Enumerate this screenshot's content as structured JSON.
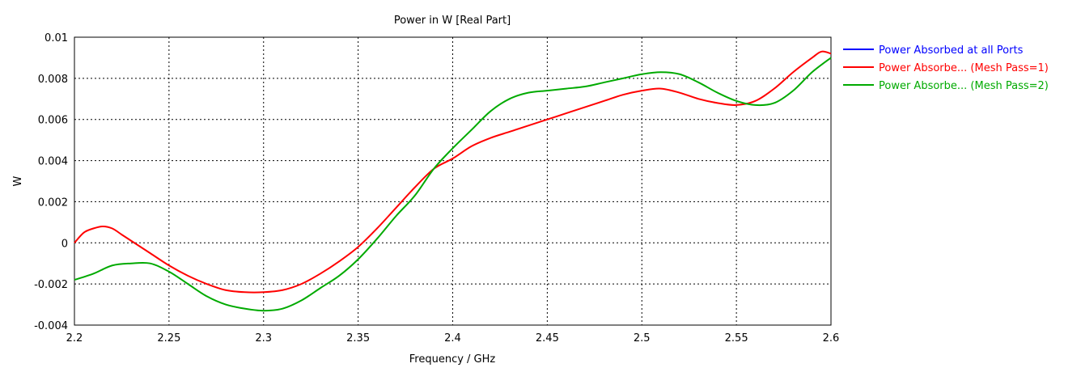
{
  "chart_data": {
    "type": "line",
    "title": "Power in W [Real Part]",
    "xlabel": "Frequency / GHz",
    "ylabel": "W",
    "xlim": [
      2.2,
      2.6
    ],
    "ylim": [
      -0.004,
      0.01
    ],
    "x_ticks": [
      2.2,
      2.25,
      2.3,
      2.35,
      2.4,
      2.45,
      2.5,
      2.55,
      2.6
    ],
    "x_tick_labels": [
      "2.2",
      "2.25",
      "2.3",
      "2.35",
      "2.4",
      "2.45",
      "2.5",
      "2.55",
      "2.6"
    ],
    "y_ticks": [
      -0.004,
      -0.002,
      0,
      0.002,
      0.004,
      0.006,
      0.008,
      0.01
    ],
    "y_tick_labels": [
      "-0.004",
      "-0.002",
      "0",
      "0.002",
      "0.004",
      "0.006",
      "0.008",
      "0.01"
    ],
    "grid": true,
    "grid_style": "dotted",
    "legend_position": "right",
    "series": [
      {
        "name": "Power Absorbed at all Ports",
        "color": "#0000ff",
        "x": [],
        "y": []
      },
      {
        "name": "Power Absorbe... (Mesh Pass=1)",
        "color": "#ff0000",
        "x": [
          2.2,
          2.205,
          2.21,
          2.215,
          2.22,
          2.225,
          2.23,
          2.24,
          2.25,
          2.26,
          2.27,
          2.28,
          2.29,
          2.3,
          2.31,
          2.32,
          2.33,
          2.34,
          2.35,
          2.36,
          2.37,
          2.38,
          2.39,
          2.4,
          2.41,
          2.42,
          2.43,
          2.44,
          2.45,
          2.46,
          2.47,
          2.48,
          2.49,
          2.5,
          2.51,
          2.52,
          2.53,
          2.54,
          2.55,
          2.56,
          2.57,
          2.58,
          2.59,
          2.595,
          2.6
        ],
        "y": [
          0.0,
          0.0005,
          0.0007,
          0.0008,
          0.0007,
          0.0004,
          0.0001,
          -0.0005,
          -0.0011,
          -0.0016,
          -0.002,
          -0.0023,
          -0.0024,
          -0.0024,
          -0.0023,
          -0.002,
          -0.0015,
          -0.0009,
          -0.0002,
          0.0007,
          0.0017,
          0.0027,
          0.0036,
          0.0041,
          0.0047,
          0.0051,
          0.0054,
          0.0057,
          0.006,
          0.0063,
          0.0066,
          0.0069,
          0.0072,
          0.0074,
          0.0075,
          0.0073,
          0.007,
          0.0068,
          0.0067,
          0.0069,
          0.0075,
          0.0083,
          0.009,
          0.0093,
          0.0092
        ]
      },
      {
        "name": "Power Absorbe... (Mesh Pass=2)",
        "color": "#00aa00",
        "x": [
          2.2,
          2.21,
          2.22,
          2.23,
          2.24,
          2.25,
          2.26,
          2.27,
          2.28,
          2.29,
          2.3,
          2.31,
          2.32,
          2.33,
          2.34,
          2.35,
          2.36,
          2.37,
          2.38,
          2.39,
          2.4,
          2.41,
          2.42,
          2.43,
          2.44,
          2.45,
          2.46,
          2.47,
          2.48,
          2.49,
          2.5,
          2.51,
          2.52,
          2.53,
          2.54,
          2.55,
          2.56,
          2.57,
          2.58,
          2.59,
          2.6
        ],
        "y": [
          -0.0018,
          -0.0015,
          -0.0011,
          -0.001,
          -0.001,
          -0.0014,
          -0.002,
          -0.0026,
          -0.003,
          -0.0032,
          -0.0033,
          -0.0032,
          -0.0028,
          -0.0022,
          -0.0016,
          -0.0008,
          0.0002,
          0.0013,
          0.0023,
          0.0036,
          0.0046,
          0.0055,
          0.0064,
          0.007,
          0.0073,
          0.0074,
          0.0075,
          0.0076,
          0.0078,
          0.008,
          0.0082,
          0.0083,
          0.0082,
          0.0078,
          0.0073,
          0.0069,
          0.0067,
          0.0068,
          0.0074,
          0.0083,
          0.009
        ]
      }
    ]
  }
}
